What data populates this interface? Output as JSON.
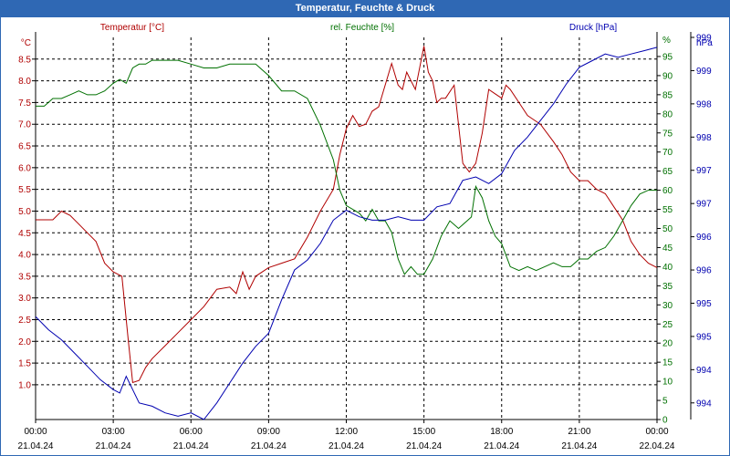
{
  "window": {
    "title": "Temperatur, Feuchte & Druck"
  },
  "chart_data": {
    "type": "line",
    "title": "Temperatur, Feuchte & Druck",
    "colors": {
      "temperature": "#b00000",
      "humidity": "#007000",
      "pressure": "#0000b0",
      "grid": "#000000",
      "border": "#2f68b4"
    },
    "grid": true,
    "x_ticks": [
      {
        "time": "00:00",
        "date": "21.04.24"
      },
      {
        "time": "03:00",
        "date": "21.04.24"
      },
      {
        "time": "06:00",
        "date": "21.04.24"
      },
      {
        "time": "09:00",
        "date": "21.04.24"
      },
      {
        "time": "12:00",
        "date": "21.04.24"
      },
      {
        "time": "15:00",
        "date": "21.04.24"
      },
      {
        "time": "18:00",
        "date": "21.04.24"
      },
      {
        "time": "21:00",
        "date": "21.04.24"
      },
      {
        "time": "00:00",
        "date": "22.04.24"
      }
    ],
    "xlim": [
      "21.04.24 00:00",
      "22.04.24 00:00"
    ],
    "axes": {
      "temperature": {
        "label": "Temperatur [°C]",
        "unit": "°C",
        "ticks": [
          "1.0",
          "1.5",
          "2.0",
          "2.5",
          "3.0",
          "3.5",
          "4.0",
          "4.5",
          "5.0",
          "5.5",
          "6.0",
          "6.5",
          "7.0",
          "7.5",
          "8.0",
          "8.5"
        ],
        "ylim": [
          0.2,
          9.0
        ]
      },
      "humidity": {
        "label": "rel. Feuchte [%]",
        "unit": "%",
        "ticks": [
          "0",
          "5",
          "10",
          "15",
          "20",
          "25",
          "30",
          "35",
          "40",
          "45",
          "50",
          "55",
          "60",
          "65",
          "70",
          "75",
          "80",
          "85",
          "90",
          "95"
        ],
        "ylim": [
          0,
          100
        ]
      },
      "pressure": {
        "label": "Druck [hPa]",
        "unit": "hPa",
        "ticks": [
          "994",
          "994",
          "995",
          "995",
          "996",
          "996",
          "997",
          "997",
          "998",
          "998",
          "999",
          "999"
        ],
        "ylim": [
          993.75,
          999.5
        ]
      }
    },
    "series": [
      {
        "name": "Temperatur [°C]",
        "axis": "temperature",
        "points": [
          [
            "00:00",
            4.8
          ],
          [
            "00:40",
            4.8
          ],
          [
            "01:00",
            5.0
          ],
          [
            "01:20",
            4.9
          ],
          [
            "01:40",
            4.7
          ],
          [
            "02:00",
            4.5
          ],
          [
            "02:20",
            4.3
          ],
          [
            "02:40",
            3.8
          ],
          [
            "03:00",
            3.6
          ],
          [
            "03:20",
            3.5
          ],
          [
            "03:35",
            2.0
          ],
          [
            "03:45",
            1.05
          ],
          [
            "04:00",
            1.1
          ],
          [
            "04:15",
            1.4
          ],
          [
            "04:30",
            1.6
          ],
          [
            "05:00",
            1.9
          ],
          [
            "05:30",
            2.2
          ],
          [
            "06:00",
            2.5
          ],
          [
            "06:30",
            2.8
          ],
          [
            "07:00",
            3.2
          ],
          [
            "07:30",
            3.25
          ],
          [
            "07:45",
            3.1
          ],
          [
            "08:00",
            3.6
          ],
          [
            "08:15",
            3.2
          ],
          [
            "08:30",
            3.5
          ],
          [
            "09:00",
            3.7
          ],
          [
            "09:30",
            3.8
          ],
          [
            "10:00",
            3.9
          ],
          [
            "10:30",
            4.4
          ],
          [
            "11:00",
            5.0
          ],
          [
            "11:30",
            5.5
          ],
          [
            "11:45",
            6.3
          ],
          [
            "12:00",
            6.9
          ],
          [
            "12:15",
            7.2
          ],
          [
            "12:30",
            6.95
          ],
          [
            "12:45",
            7.0
          ],
          [
            "13:00",
            7.3
          ],
          [
            "13:15",
            7.4
          ],
          [
            "13:30",
            7.9
          ],
          [
            "13:45",
            8.4
          ],
          [
            "14:00",
            7.9
          ],
          [
            "14:10",
            7.8
          ],
          [
            "14:20",
            8.2
          ],
          [
            "14:30",
            8.0
          ],
          [
            "14:40",
            7.8
          ],
          [
            "14:50",
            8.3
          ],
          [
            "15:00",
            8.8
          ],
          [
            "15:10",
            8.2
          ],
          [
            "15:20",
            8.0
          ],
          [
            "15:30",
            7.5
          ],
          [
            "15:40",
            7.6
          ],
          [
            "15:50",
            7.6
          ],
          [
            "16:10",
            7.9
          ],
          [
            "16:30",
            6.1
          ],
          [
            "16:45",
            5.9
          ],
          [
            "17:00",
            6.1
          ],
          [
            "17:15",
            6.8
          ],
          [
            "17:30",
            7.8
          ],
          [
            "17:45",
            7.7
          ],
          [
            "18:00",
            7.6
          ],
          [
            "18:10",
            7.9
          ],
          [
            "18:20",
            7.8
          ],
          [
            "18:40",
            7.5
          ],
          [
            "19:00",
            7.2
          ],
          [
            "19:15",
            7.1
          ],
          [
            "19:30",
            7.0
          ],
          [
            "19:45",
            6.8
          ],
          [
            "20:00",
            6.6
          ],
          [
            "20:20",
            6.3
          ],
          [
            "20:40",
            5.9
          ],
          [
            "21:00",
            5.7
          ],
          [
            "21:20",
            5.7
          ],
          [
            "21:40",
            5.5
          ],
          [
            "22:00",
            5.4
          ],
          [
            "22:20",
            5.1
          ],
          [
            "22:40",
            4.8
          ],
          [
            "23:00",
            4.3
          ],
          [
            "23:20",
            4.0
          ],
          [
            "23:40",
            3.8
          ],
          [
            "24:00",
            3.7
          ]
        ]
      },
      {
        "name": "rel. Feuchte [%]",
        "axis": "humidity",
        "points": [
          [
            "00:00",
            82
          ],
          [
            "00:20",
            82
          ],
          [
            "00:40",
            84
          ],
          [
            "01:00",
            84
          ],
          [
            "01:20",
            85
          ],
          [
            "01:40",
            86
          ],
          [
            "02:00",
            85
          ],
          [
            "02:20",
            85
          ],
          [
            "02:40",
            86
          ],
          [
            "03:00",
            88
          ],
          [
            "03:15",
            89
          ],
          [
            "03:30",
            88
          ],
          [
            "03:45",
            92
          ],
          [
            "04:00",
            93
          ],
          [
            "04:15",
            93
          ],
          [
            "04:30",
            94
          ],
          [
            "05:00",
            94
          ],
          [
            "05:30",
            94
          ],
          [
            "06:00",
            93
          ],
          [
            "06:30",
            92
          ],
          [
            "07:00",
            92
          ],
          [
            "07:30",
            93
          ],
          [
            "08:00",
            93
          ],
          [
            "08:30",
            93
          ],
          [
            "09:00",
            90
          ],
          [
            "09:30",
            86
          ],
          [
            "10:00",
            86
          ],
          [
            "10:30",
            84
          ],
          [
            "11:00",
            77
          ],
          [
            "11:30",
            68
          ],
          [
            "11:45",
            60
          ],
          [
            "12:00",
            56
          ],
          [
            "12:30",
            54
          ],
          [
            "12:45",
            52
          ],
          [
            "13:00",
            55
          ],
          [
            "13:15",
            52
          ],
          [
            "13:30",
            52
          ],
          [
            "13:45",
            49
          ],
          [
            "14:00",
            42
          ],
          [
            "14:15",
            38
          ],
          [
            "14:30",
            40
          ],
          [
            "14:45",
            38
          ],
          [
            "15:00",
            38
          ],
          [
            "15:20",
            42
          ],
          [
            "15:40",
            48
          ],
          [
            "16:00",
            52
          ],
          [
            "16:20",
            50
          ],
          [
            "16:40",
            52
          ],
          [
            "16:50",
            53
          ],
          [
            "17:00",
            61
          ],
          [
            "17:15",
            58
          ],
          [
            "17:30",
            52
          ],
          [
            "17:45",
            48
          ],
          [
            "18:00",
            46
          ],
          [
            "18:20",
            40
          ],
          [
            "18:40",
            39
          ],
          [
            "19:00",
            40
          ],
          [
            "19:20",
            39
          ],
          [
            "19:40",
            40
          ],
          [
            "20:00",
            41
          ],
          [
            "20:20",
            40
          ],
          [
            "20:40",
            40
          ],
          [
            "21:00",
            42
          ],
          [
            "21:20",
            42
          ],
          [
            "21:40",
            44
          ],
          [
            "22:00",
            45
          ],
          [
            "22:20",
            48
          ],
          [
            "22:40",
            52
          ],
          [
            "23:00",
            56
          ],
          [
            "23:20",
            59
          ],
          [
            "23:40",
            60
          ],
          [
            "24:00",
            60
          ]
        ]
      },
      {
        "name": "Druck [hPa]",
        "axis": "pressure",
        "points": [
          [
            "00:00",
            995.3
          ],
          [
            "00:30",
            995.1
          ],
          [
            "01:00",
            994.95
          ],
          [
            "01:30",
            994.75
          ],
          [
            "02:00",
            994.55
          ],
          [
            "02:30",
            994.35
          ],
          [
            "03:00",
            994.2
          ],
          [
            "03:15",
            994.15
          ],
          [
            "03:30",
            994.4
          ],
          [
            "03:45",
            994.2
          ],
          [
            "04:00",
            994.0
          ],
          [
            "04:30",
            993.95
          ],
          [
            "05:00",
            993.85
          ],
          [
            "05:30",
            993.8
          ],
          [
            "06:00",
            993.85
          ],
          [
            "06:30",
            993.75
          ],
          [
            "07:00",
            994.0
          ],
          [
            "07:30",
            994.3
          ],
          [
            "08:00",
            994.6
          ],
          [
            "08:30",
            994.85
          ],
          [
            "09:00",
            995.05
          ],
          [
            "09:30",
            995.55
          ],
          [
            "10:00",
            996.0
          ],
          [
            "10:30",
            996.15
          ],
          [
            "11:00",
            996.4
          ],
          [
            "11:30",
            996.75
          ],
          [
            "12:00",
            996.9
          ],
          [
            "12:30",
            996.8
          ],
          [
            "13:00",
            996.75
          ],
          [
            "13:30",
            996.75
          ],
          [
            "14:00",
            996.8
          ],
          [
            "14:30",
            996.75
          ],
          [
            "15:00",
            996.75
          ],
          [
            "15:30",
            996.95
          ],
          [
            "16:00",
            997.0
          ],
          [
            "16:30",
            997.35
          ],
          [
            "17:00",
            997.4
          ],
          [
            "17:30",
            997.3
          ],
          [
            "18:00",
            997.45
          ],
          [
            "18:30",
            997.8
          ],
          [
            "19:00",
            998.0
          ],
          [
            "19:30",
            998.25
          ],
          [
            "20:00",
            998.5
          ],
          [
            "20:30",
            998.8
          ],
          [
            "21:00",
            999.05
          ],
          [
            "21:30",
            999.15
          ],
          [
            "22:00",
            999.25
          ],
          [
            "22:30",
            999.2
          ],
          [
            "23:00",
            999.25
          ],
          [
            "23:30",
            999.3
          ],
          [
            "24:00",
            999.35
          ]
        ]
      }
    ]
  }
}
